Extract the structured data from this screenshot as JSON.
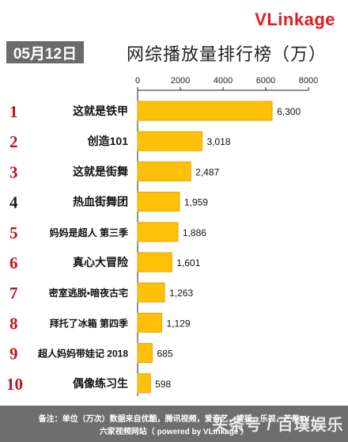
{
  "brand": {
    "logo_v": "V",
    "logo_rest": "Linkage"
  },
  "date_badge": "05月12日",
  "title": "网综播放量排行榜（万）",
  "chart_data": {
    "type": "bar",
    "orientation": "horizontal",
    "axis": {
      "xlim": [
        0,
        8000
      ],
      "ticks": [
        "0",
        "2000",
        "4000",
        "6000",
        "8000"
      ],
      "position": "top"
    },
    "ranks": [
      "1",
      "2",
      "3",
      "4",
      "5",
      "6",
      "7",
      "8",
      "9",
      "10"
    ],
    "categories": [
      "这就是铁甲",
      "创造101",
      "这就是街舞",
      "热血街舞团",
      "妈妈是超人 第三季",
      "真心大冒险",
      "密室逃脱•暗夜古宅",
      "拜托了冰箱 第四季",
      "超人妈妈带娃记 2018",
      "偶像练习生"
    ],
    "values": [
      6300,
      3018,
      2487,
      1959,
      1886,
      1601,
      1263,
      1129,
      685,
      598
    ],
    "value_labels": [
      "6,300",
      "3,018",
      "2,487",
      "1,959",
      "1,886",
      "1,601",
      "1,263",
      "1,129",
      "685",
      "598"
    ],
    "bar_color": "#ffc107",
    "bar_border": "#e1a400",
    "top_rank_color": "#c0131a"
  },
  "footer": {
    "line1": "备注：单位（万次）数据来自优酷，腾讯视频，爱奇艺，搜狐，乐视，芒果TV",
    "line2": "六家视频网站（ powered by VLinkage ）"
  },
  "watermark": "头条号 / 百璞娱乐"
}
